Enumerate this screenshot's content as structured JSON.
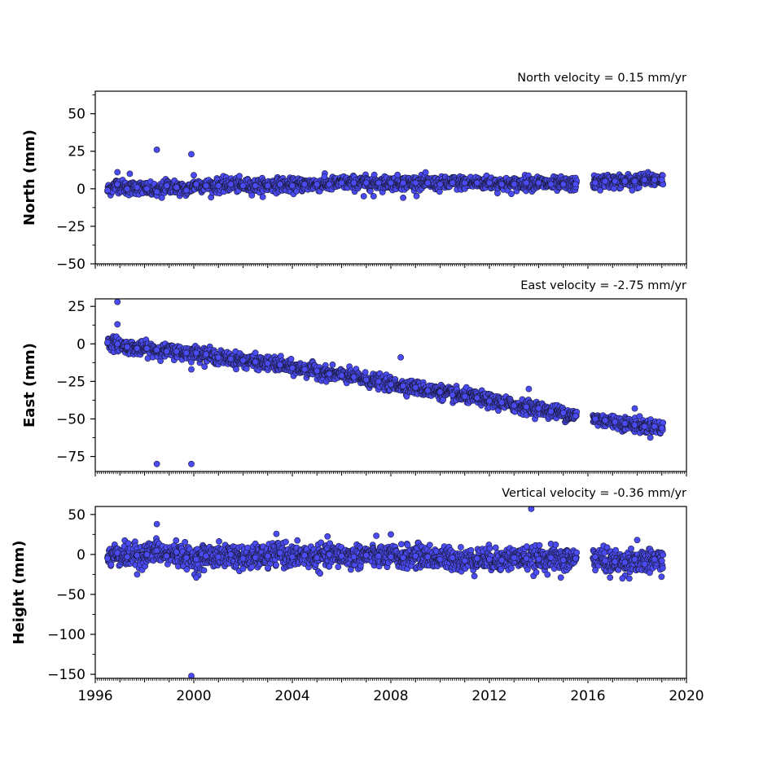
{
  "chart_data": [
    {
      "type": "scatter",
      "panel": "north",
      "annotation": "North velocity = 0.15 mm/yr",
      "ylabel": "North (mm)",
      "xlim": [
        1996,
        2020
      ],
      "ylim": [
        -50,
        65
      ],
      "yticks": [
        50,
        25,
        0,
        -25,
        -50
      ],
      "ytick_labels": [
        "50",
        "25",
        "0",
        "−25",
        "−50"
      ],
      "series": [
        {
          "color": "#4b4bf5",
          "x": [
            1996.5,
            1996.9,
            1997.3,
            1997.7,
            1998.1,
            1998.5,
            1998.9,
            1999.3,
            1999.7,
            2000.1,
            2000.5,
            2001.0,
            2001.5,
            2002.0,
            2002.5,
            2003.0,
            2003.5,
            2004.0,
            2004.5,
            2005.0,
            2005.5,
            2006.0,
            2006.5,
            2007.0,
            2007.5,
            2008.0,
            2008.5,
            2009.0,
            2009.5,
            2010.0,
            2010.5,
            2011.0,
            2011.5,
            2012.0,
            2012.5,
            2013.0,
            2013.5,
            2014.0,
            2014.5,
            2015.0,
            2015.5,
            2016.3,
            2016.7,
            2017.1,
            2017.5,
            2017.9,
            2018.3,
            2018.7,
            2019.0,
            1998.5,
            1999.9,
            1996.9,
            1997.4,
            1998.7,
            2000.0,
            2005.3,
            2006.9,
            2007.3,
            2008.5,
            2016.5,
            2017.8
          ],
          "y": [
            -1,
            3,
            0,
            1,
            0,
            -2,
            2,
            1,
            -1,
            3,
            2,
            2,
            3,
            2,
            2,
            2,
            3,
            2,
            3,
            3,
            3,
            4,
            4,
            4,
            4,
            4,
            4,
            4,
            4,
            3,
            4,
            4,
            4,
            4,
            3,
            3,
            4,
            4,
            3,
            3,
            3,
            4,
            5,
            5,
            5,
            5,
            6,
            6,
            6,
            26,
            23,
            11,
            10,
            -6,
            9,
            8,
            -5,
            -5,
            -6,
            -1,
            -1
          ]
        }
      ]
    },
    {
      "type": "scatter",
      "panel": "east",
      "annotation": "East velocity = -2.75 mm/yr",
      "ylabel": "East (mm)",
      "xlim": [
        1996,
        2020
      ],
      "ylim": [
        -85,
        30
      ],
      "yticks": [
        25,
        0,
        -25,
        -50,
        -75
      ],
      "ytick_labels": [
        "25",
        "0",
        "−25",
        "−50",
        "−75"
      ],
      "series": [
        {
          "color": "#4b4bf5",
          "x": [
            1996.5,
            1996.9,
            1997.3,
            1997.7,
            1998.1,
            1998.5,
            1998.9,
            1999.3,
            1999.7,
            2000.1,
            2000.5,
            2001.0,
            2001.5,
            2002.0,
            2002.5,
            2003.0,
            2003.5,
            2004.0,
            2004.5,
            2005.0,
            2005.5,
            2006.0,
            2006.5,
            2007.0,
            2007.5,
            2008.0,
            2008.5,
            2009.0,
            2009.5,
            2010.0,
            2010.5,
            2011.0,
            2011.5,
            2012.0,
            2012.5,
            2013.0,
            2013.5,
            2014.0,
            2014.5,
            2015.0,
            2015.5,
            2016.3,
            2016.7,
            2017.1,
            2017.5,
            2017.9,
            2018.3,
            2018.7,
            2019.0,
            1996.9,
            1996.9,
            1998.5,
            1999.9,
            1999.9,
            2008.4,
            2013.6,
            2017.9
          ],
          "y": [
            1,
            0,
            -2,
            -3,
            -3,
            -4,
            -5,
            -5,
            -6,
            -6,
            -7,
            -9,
            -10,
            -11,
            -12,
            -13,
            -14,
            -16,
            -17,
            -18,
            -20,
            -21,
            -22,
            -24,
            -25,
            -27,
            -28,
            -29,
            -31,
            -32,
            -34,
            -35,
            -36,
            -38,
            -39,
            -41,
            -42,
            -43,
            -45,
            -46,
            -48,
            -50,
            -51,
            -52,
            -53,
            -54,
            -55,
            -55,
            -56,
            28,
            13,
            -80,
            -80,
            -17,
            -9,
            -30,
            -43
          ]
        }
      ]
    },
    {
      "type": "scatter",
      "panel": "height",
      "annotation": "Vertical velocity = -0.36 mm/yr",
      "ylabel": "Height (mm)",
      "xlabel": "",
      "xlim": [
        1996,
        2020
      ],
      "ylim": [
        -155,
        60
      ],
      "xticks": [
        1996,
        2000,
        2004,
        2008,
        2012,
        2016,
        2020
      ],
      "xtick_labels": [
        "1996",
        "2000",
        "2004",
        "2008",
        "2012",
        "2016",
        "2020"
      ],
      "yticks": [
        50,
        0,
        -50,
        -100,
        -150
      ],
      "ytick_labels": [
        "50",
        "0",
        "−50",
        "−100",
        "−150"
      ],
      "series": [
        {
          "color": "#4b4bf5",
          "x": [
            1996.5,
            1996.9,
            1997.3,
            1997.7,
            1998.1,
            1998.5,
            1998.9,
            1999.3,
            1999.7,
            2000.1,
            2000.5,
            2001.0,
            2001.5,
            2002.0,
            2002.5,
            2003.0,
            2003.5,
            2004.0,
            2004.5,
            2005.0,
            2005.5,
            2006.0,
            2006.5,
            2007.0,
            2007.5,
            2008.0,
            2008.5,
            2009.0,
            2009.5,
            2010.0,
            2010.5,
            2011.0,
            2011.5,
            2012.0,
            2012.5,
            2013.0,
            2013.5,
            2014.0,
            2014.5,
            2015.0,
            2015.5,
            2016.3,
            2016.7,
            2017.1,
            2017.5,
            2017.9,
            2018.3,
            2018.7,
            2019.0,
            1998.5,
            1999.9,
            2013.7,
            1997.7,
            2000.1,
            2002.0,
            2003.0,
            2005.5,
            2008.0,
            2014.9,
            2016.9,
            2017.4,
            2018.0
          ],
          "y": [
            -5,
            2,
            -3,
            -1,
            0,
            5,
            -2,
            3,
            -4,
            -6,
            -2,
            -3,
            0,
            -5,
            -4,
            -2,
            2,
            -3,
            -1,
            -4,
            0,
            -2,
            -3,
            -1,
            -2,
            -3,
            -4,
            -2,
            -3,
            -6,
            -4,
            -8,
            -5,
            -6,
            -7,
            -4,
            -5,
            -6,
            -4,
            -7,
            -5,
            -3,
            -8,
            -9,
            -10,
            -6,
            -12,
            -6,
            -8,
            38,
            -152,
            57,
            -25,
            -29,
            -18,
            -17,
            -15,
            25,
            -29,
            -29,
            -30,
            18
          ]
        }
      ]
    }
  ]
}
